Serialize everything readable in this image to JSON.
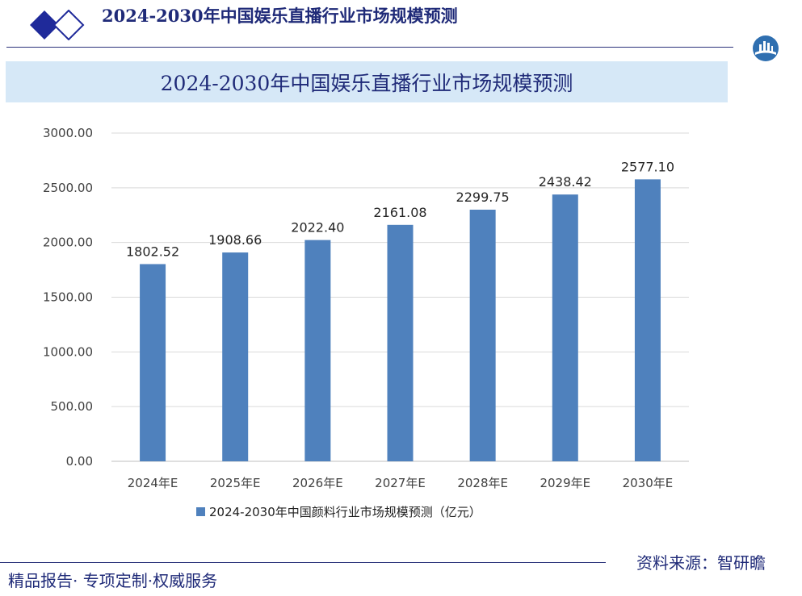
{
  "header": {
    "title": "2024-2030年中国娱乐直播行业市场规模预测"
  },
  "icons": {
    "diamonds": "diamond-pair-icon",
    "logo": "zhiyan-logo-icon"
  },
  "colors": {
    "brand": "#1f2a78",
    "band": "#d6e8f7",
    "bar": "#4f81bd",
    "grid": "#d9d9d9"
  },
  "chart_data": {
    "type": "bar",
    "title": "2024-2030年中国娱乐直播行业市场规模预测",
    "categories": [
      "2024年E",
      "2025年E",
      "2026年E",
      "2027年E",
      "2028年E",
      "2029年E",
      "2030年E"
    ],
    "series": [
      {
        "name": "2024-2030年中国颜料行业市场规模预测（亿元）",
        "values": [
          1802.52,
          1908.66,
          2022.4,
          2161.08,
          2299.75,
          2438.42,
          2577.1
        ],
        "data_labels": [
          "1802.52",
          "1908.66",
          "2022.40",
          "2161.08",
          "2299.75",
          "2438.42",
          "2577.10"
        ]
      }
    ],
    "ylim": [
      0,
      3000
    ],
    "y_ticks": [
      0,
      500,
      1000,
      1500,
      2000,
      2500,
      3000
    ],
    "y_tick_labels": [
      "0.00",
      "500.00",
      "1000.00",
      "1500.00",
      "2000.00",
      "2500.00",
      "3000.00"
    ],
    "grid": true,
    "legend_position": "bottom"
  },
  "footer": {
    "left_text": "精品报告· 专项定制·权威服务",
    "source_text": "资料来源：智研瞻"
  }
}
